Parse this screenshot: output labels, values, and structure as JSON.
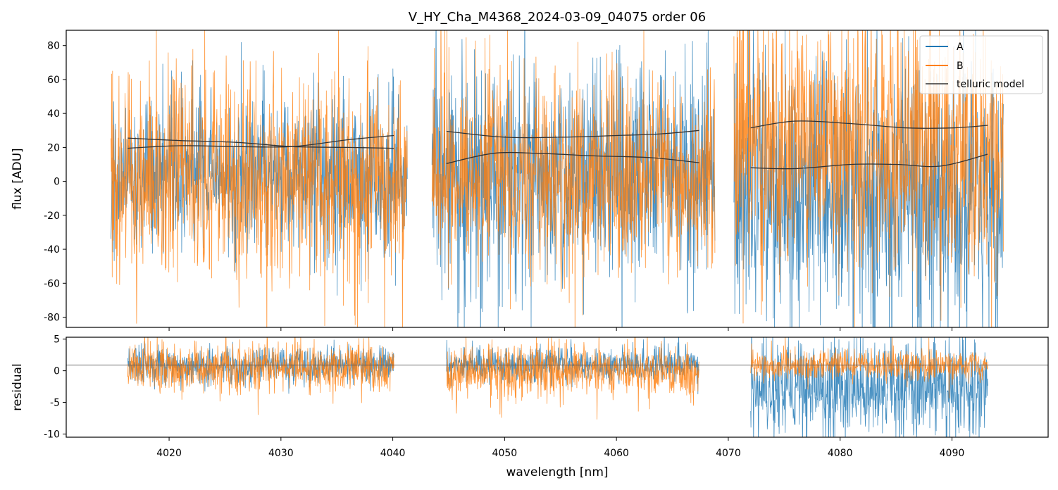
{
  "chart_data": {
    "title": "V_HY_Cha_M4368_2024-03-09_04075  order 06",
    "xlabel": "wavelength [nm]",
    "xlim": [
      4010.8,
      4098.6
    ],
    "xticks": [
      4020,
      4030,
      4040,
      4050,
      4060,
      4070,
      4080,
      4090
    ],
    "colors": {
      "A": "#1f77b4",
      "B": "#ff7f0e",
      "telluric": "#333333"
    },
    "panels": [
      {
        "name": "flux",
        "type": "line",
        "ylabel": "flux [ADU]",
        "ylim": [
          -86,
          89
        ],
        "yticks": [
          -80,
          -60,
          -40,
          -20,
          0,
          20,
          40,
          60,
          80
        ],
        "segments": [
          {
            "x": [
              4014.8,
              4041.3
            ],
            "A": {
              "center": 3,
              "noise": 24
            },
            "B": {
              "center": 1,
              "noise": 31
            }
          },
          {
            "x": [
              4043.5,
              4068.8
            ],
            "A": {
              "center": 5,
              "noise": 33
            },
            "B": {
              "center": 2,
              "noise": 30
            }
          },
          {
            "x": [
              4070.5,
              4094.6
            ],
            "A": {
              "center": -12,
              "noise": 42
            },
            "B": {
              "center": 20,
              "noise": 38
            }
          }
        ],
        "telluric_model": [
          {
            "x": [
              4016.3,
              4021,
              4026,
              4031,
              4036,
              4040.1
            ],
            "y": [
              25.5,
              24,
              23,
              20.5,
              20,
              19.5
            ]
          },
          {
            "x": [
              4016.3,
              4021,
              4026,
              4031,
              4036,
              4040.1
            ],
            "y": [
              19.5,
              21,
              20.5,
              20.5,
              24.5,
              27
            ]
          },
          {
            "x": [
              4044.8,
              4050,
              4055,
              4060,
              4064,
              4067.4
            ],
            "y": [
              29.5,
              26,
              26,
              27,
              28,
              30
            ]
          },
          {
            "x": [
              4044.8,
              4049,
              4053,
              4058,
              4063,
              4067.4
            ],
            "y": [
              10.5,
              16.5,
              16.5,
              15,
              14,
              11
            ]
          },
          {
            "x": [
              4072.0,
              4076,
              4081,
              4086,
              4090,
              4093.2
            ],
            "y": [
              31.5,
              35.5,
              34,
              31.5,
              31.5,
              33
            ]
          },
          {
            "x": [
              4072.0,
              4076,
              4081,
              4085,
              4089,
              4093.2
            ],
            "y": [
              8,
              7.5,
              10,
              10,
              9,
              16
            ]
          }
        ],
        "legend": {
          "placement": "top-right",
          "entries": [
            "A",
            "B",
            "telluric model"
          ]
        }
      },
      {
        "name": "residual",
        "type": "line",
        "ylabel": "residual",
        "ylim": [
          -10.5,
          5.3
        ],
        "yticks": [
          -10,
          -5,
          0,
          5
        ],
        "reference_line": 0.9,
        "segments": [
          {
            "x": [
              4016.3,
              4040.1
            ],
            "A": {
              "center": 0.9,
              "noise": 1.4
            },
            "B": {
              "center": 0.4,
              "noise": 1.9
            }
          },
          {
            "x": [
              4044.8,
              4067.4
            ],
            "A": {
              "center": 0.9,
              "noise": 1.4
            },
            "B": {
              "center": 0.0,
              "noise": 2.1
            }
          },
          {
            "x": [
              4072.0,
              4093.2
            ],
            "A": {
              "center": -2.5,
              "noise": 4.0
            },
            "B": {
              "center": 0.9,
              "noise": 1.2
            }
          }
        ]
      }
    ]
  }
}
